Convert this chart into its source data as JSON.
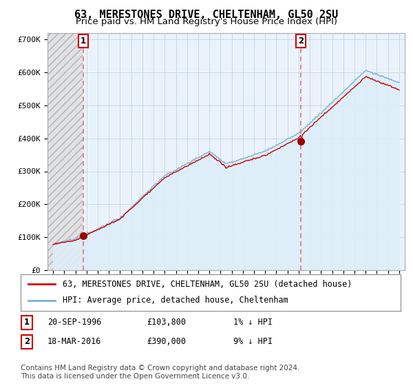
{
  "title": "63, MERESTONES DRIVE, CHELTENHAM, GL50 2SU",
  "subtitle": "Price paid vs. HM Land Registry's House Price Index (HPI)",
  "ylim": [
    0,
    720000
  ],
  "yticks": [
    0,
    100000,
    200000,
    300000,
    400000,
    500000,
    600000,
    700000
  ],
  "ytick_labels": [
    "£0",
    "£100K",
    "£200K",
    "£300K",
    "£400K",
    "£500K",
    "£600K",
    "£700K"
  ],
  "xlim_start": 1993.5,
  "xlim_end": 2025.5,
  "purchase1_date": 1996.72,
  "purchase1_price": 103800,
  "purchase2_date": 2016.21,
  "purchase2_price": 390000,
  "legend_entry1": "63, MERESTONES DRIVE, CHELTENHAM, GL50 2SU (detached house)",
  "legend_entry2": "HPI: Average price, detached house, Cheltenham",
  "annotation1_label": "1",
  "annotation1_date": "20-SEP-1996",
  "annotation1_price": "£103,800",
  "annotation1_hpi": "1% ↓ HPI",
  "annotation2_label": "2",
  "annotation2_date": "18-MAR-2016",
  "annotation2_price": "£390,000",
  "annotation2_hpi": "9% ↓ HPI",
  "footer": "Contains HM Land Registry data © Crown copyright and database right 2024.\nThis data is licensed under the Open Government Licence v3.0.",
  "house_line_color": "#cc0000",
  "hpi_line_color": "#7ab0d4",
  "hpi_fill_color": "#ddeef8",
  "marker_color": "#990000",
  "dashed_line_color": "#e87070",
  "grid_color": "#c8d8e8",
  "plot_bg_color": "#eaf3fb",
  "background_color": "#ffffff",
  "title_fontsize": 11,
  "subtitle_fontsize": 9.5,
  "tick_fontsize": 8,
  "legend_fontsize": 8.5,
  "annotation_fontsize": 8.5,
  "footer_fontsize": 7.5
}
